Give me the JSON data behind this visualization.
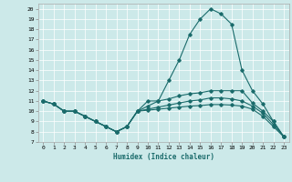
{
  "xlabel": "Humidex (Indice chaleur)",
  "xlim": [
    -0.5,
    23.5
  ],
  "ylim": [
    7,
    20.5
  ],
  "yticks": [
    7,
    8,
    9,
    10,
    11,
    12,
    13,
    14,
    15,
    16,
    17,
    18,
    19,
    20
  ],
  "xticks": [
    0,
    1,
    2,
    3,
    4,
    5,
    6,
    7,
    8,
    9,
    10,
    11,
    12,
    13,
    14,
    15,
    16,
    17,
    18,
    19,
    20,
    21,
    22,
    23
  ],
  "background_color": "#cce9e9",
  "line_color": "#1a6b6b",
  "lines": [
    [
      11,
      10.7,
      10,
      10,
      9.5,
      9,
      8.5,
      8,
      8.5,
      10,
      11,
      11,
      13,
      15,
      17.5,
      19,
      20,
      19.5,
      18.5,
      14,
      12,
      10.7,
      9,
      7.5
    ],
    [
      11,
      10.7,
      10,
      10,
      9.5,
      9,
      8.5,
      8,
      8.5,
      10,
      10.5,
      11,
      11.2,
      11.5,
      11.7,
      11.8,
      12,
      12,
      12,
      12,
      10.8,
      10,
      9,
      7.5
    ],
    [
      11,
      10.7,
      10,
      10,
      9.5,
      9,
      8.5,
      8,
      8.5,
      10,
      10.2,
      10.4,
      10.6,
      10.8,
      11,
      11.1,
      11.3,
      11.3,
      11.2,
      11,
      10.5,
      9.8,
      8.7,
      7.5
    ],
    [
      11,
      10.7,
      10,
      10,
      9.5,
      9,
      8.5,
      8,
      8.5,
      10,
      10.1,
      10.2,
      10.3,
      10.4,
      10.5,
      10.55,
      10.65,
      10.65,
      10.6,
      10.5,
      10.2,
      9.5,
      8.5,
      7.5
    ]
  ]
}
